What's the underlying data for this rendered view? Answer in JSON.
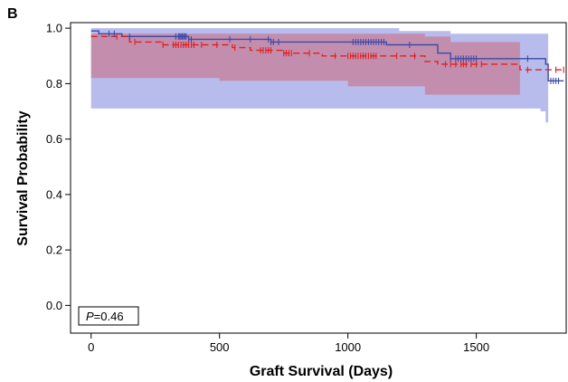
{
  "panel_label": "B",
  "chart_data": {
    "type": "line",
    "xlabel": "Graft Survival (Days)",
    "ylabel": "Survival Probability",
    "xlim": [
      -80,
      1850
    ],
    "ylim": [
      -0.1,
      1.02
    ],
    "xticks": [
      0,
      500,
      1000,
      1500
    ],
    "xtick_labels": [
      "0",
      "500",
      "1000",
      "1500"
    ],
    "yticks": [
      0.0,
      0.2,
      0.4,
      0.6,
      0.8,
      1.0
    ],
    "ytick_labels": [
      "0.0",
      "0.2",
      "0.4",
      "0.6",
      "0.8",
      "1.0"
    ],
    "grid": false,
    "annotation": {
      "p_prefix": "P",
      "p_suffix": "=0.46"
    },
    "series": [
      {
        "color": "#3b4aa8",
        "band_color": "#9fa6e6",
        "line_style": "solid",
        "steps": [
          [
            0,
            0.99
          ],
          [
            30,
            0.98
          ],
          [
            120,
            0.97
          ],
          [
            380,
            0.96
          ],
          [
            700,
            0.95
          ],
          [
            1150,
            0.94
          ],
          [
            1350,
            0.91
          ],
          [
            1400,
            0.89
          ],
          [
            1770,
            0.87
          ],
          [
            1780,
            0.81
          ],
          [
            1840,
            0.81
          ]
        ],
        "band_upper": [
          [
            0,
            1.0
          ],
          [
            1150,
            1.0
          ],
          [
            1200,
            0.99
          ],
          [
            1400,
            0.98
          ],
          [
            1780,
            0.98
          ]
        ],
        "band_lower": [
          [
            0,
            0.71
          ],
          [
            1350,
            0.71
          ],
          [
            1750,
            0.7
          ],
          [
            1770,
            0.66
          ],
          [
            1780,
            0.66
          ]
        ],
        "censored": [
          70,
          90,
          150,
          330,
          340,
          345,
          350,
          355,
          360,
          365,
          370,
          380,
          390,
          540,
          620,
          690,
          700,
          710,
          730,
          1020,
          1030,
          1040,
          1050,
          1060,
          1070,
          1080,
          1090,
          1100,
          1110,
          1120,
          1130,
          1140,
          1240,
          1400,
          1420,
          1430,
          1440,
          1450,
          1460,
          1470,
          1480,
          1490,
          1500,
          1700,
          1790,
          1800,
          1810,
          1820
        ]
      },
      {
        "color": "#e02020",
        "band_color": "#cc6f86",
        "line_style": "dashed",
        "steps": [
          [
            0,
            0.97
          ],
          [
            150,
            0.95
          ],
          [
            280,
            0.94
          ],
          [
            550,
            0.93
          ],
          [
            620,
            0.92
          ],
          [
            750,
            0.91
          ],
          [
            900,
            0.9
          ],
          [
            1300,
            0.88
          ],
          [
            1350,
            0.87
          ],
          [
            1670,
            0.85
          ],
          [
            1840,
            0.85
          ]
        ],
        "band_upper": [
          [
            0,
            0.98
          ],
          [
            1300,
            0.97
          ],
          [
            1400,
            0.95
          ],
          [
            1670,
            0.94
          ]
        ],
        "band_lower": [
          [
            0,
            0.82
          ],
          [
            500,
            0.81
          ],
          [
            1000,
            0.79
          ],
          [
            1300,
            0.76
          ],
          [
            1500,
            0.76
          ],
          [
            1670,
            0.76
          ]
        ],
        "censored": [
          100,
          170,
          280,
          320,
          330,
          340,
          350,
          360,
          370,
          380,
          390,
          400,
          430,
          490,
          560,
          660,
          670,
          680,
          690,
          700,
          750,
          760,
          770,
          780,
          850,
          950,
          1000,
          1010,
          1020,
          1030,
          1040,
          1050,
          1060,
          1070,
          1080,
          1090,
          1100,
          1110,
          1190,
          1260,
          1380,
          1400,
          1420,
          1440,
          1450,
          1460,
          1480,
          1500,
          1520,
          1700,
          1810,
          1840
        ]
      }
    ]
  }
}
